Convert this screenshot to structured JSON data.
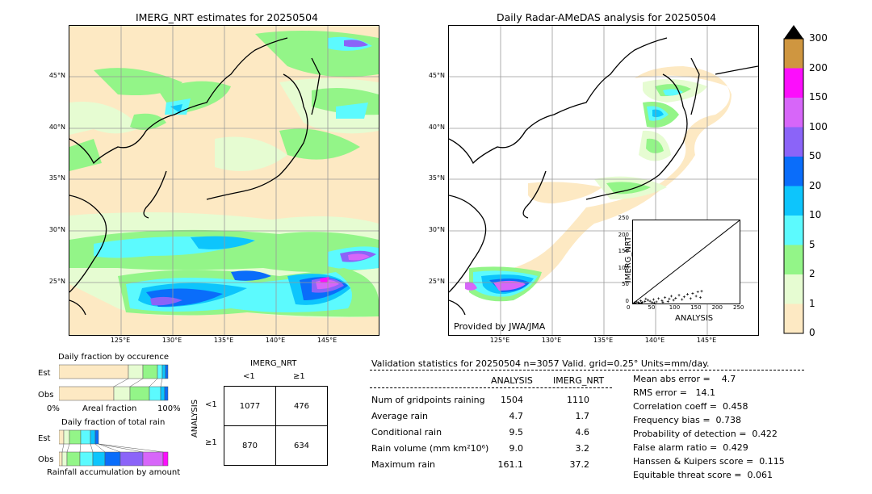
{
  "left_map": {
    "title": "IMERG_NRT estimates for 20250504",
    "lat_labels": [
      "45°N",
      "40°N",
      "35°N",
      "30°N",
      "25°N"
    ],
    "lon_labels": [
      "125°E",
      "130°E",
      "135°E",
      "140°E",
      "145°E"
    ]
  },
  "right_map": {
    "title": "Daily Radar-AMeDAS analysis for 20250504",
    "lat_labels": [
      "45°N",
      "40°N",
      "35°N",
      "30°N",
      "25°N"
    ],
    "lon_labels": [
      "125°E",
      "130°E",
      "135°E",
      "140°E",
      "145°E"
    ],
    "credit": "Provided by JWA/JMA"
  },
  "scatter_inset": {
    "xlabel": "ANALYSIS",
    "ylabel": "IMERG_NRT",
    "ticks": [
      "0",
      "25",
      "50",
      "75",
      "100",
      "125",
      "150",
      "175",
      "200",
      "225",
      "250"
    ],
    "xlim": [
      0,
      250
    ],
    "ylim": [
      0,
      250
    ],
    "points": [
      [
        3,
        2
      ],
      [
        8,
        5
      ],
      [
        12,
        3
      ],
      [
        18,
        8
      ],
      [
        22,
        4
      ],
      [
        28,
        6
      ],
      [
        35,
        10
      ],
      [
        40,
        7
      ],
      [
        48,
        12
      ],
      [
        55,
        5
      ],
      [
        60,
        15
      ],
      [
        68,
        9
      ],
      [
        75,
        18
      ],
      [
        82,
        6
      ],
      [
        90,
        22
      ],
      [
        95,
        10
      ],
      [
        100,
        16
      ],
      [
        108,
        25
      ],
      [
        115,
        12
      ],
      [
        120,
        20
      ],
      [
        128,
        28
      ],
      [
        135,
        15
      ],
      [
        140,
        30
      ],
      [
        148,
        22
      ],
      [
        152,
        35
      ],
      [
        158,
        18
      ],
      [
        161,
        37
      ],
      [
        20,
        2
      ],
      [
        45,
        3
      ],
      [
        70,
        4
      ],
      [
        30,
        14
      ],
      [
        85,
        14
      ],
      [
        5,
        1
      ],
      [
        15,
        1
      ],
      [
        50,
        2
      ]
    ]
  },
  "colorbar": {
    "labels": [
      "0",
      "1",
      "2",
      "5",
      "10",
      "20",
      "50",
      "100",
      "150",
      "200",
      "300"
    ],
    "colors": [
      "#fde9c3",
      "#e6fcd2",
      "#93f588",
      "#5cfafe",
      "#0dc5fc",
      "#0a6dfa",
      "#8b64f8",
      "#d766f9",
      "#fc0efc",
      "#cf9640"
    ]
  },
  "occurrence": {
    "title": "Daily fraction by occurence",
    "rows": [
      "Est",
      "Obs"
    ],
    "axis_left": "0%",
    "axis_mid": "Areal fraction",
    "axis_right": "100%"
  },
  "total_rain": {
    "title": "Daily fraction of total rain",
    "rows": [
      "Est",
      "Obs"
    ],
    "axis_label": "Rainfall accumulation by amount"
  },
  "contingency": {
    "col_header": "IMERG_NRT",
    "row_header": "ANALYSIS",
    "col_labels": [
      "<1",
      "≥1"
    ],
    "row_labels": [
      "<1",
      "≥1"
    ],
    "cells": [
      [
        "1077",
        "476"
      ],
      [
        "870",
        "634"
      ]
    ]
  },
  "validation": {
    "header": "Validation statistics for 20250504  n=3057 Valid. grid=0.25° Units=mm/day.",
    "col_analysis": "ANALYSIS",
    "col_imerg": "IMERG_NRT",
    "rows": [
      {
        "label": "Num of gridpoints raining",
        "analysis": "1504",
        "imerg": "1110"
      },
      {
        "label": "Average rain",
        "analysis": "4.7",
        "imerg": "1.7"
      },
      {
        "label": "Conditional rain",
        "analysis": "9.5",
        "imerg": "4.6"
      },
      {
        "label": "Rain volume (mm km²10⁶)",
        "analysis": "9.0",
        "imerg": "3.2"
      },
      {
        "label": "Maximum rain",
        "analysis": "161.1",
        "imerg": "37.2"
      }
    ],
    "scores": [
      "Mean abs error =    4.7",
      "RMS error =   14.1",
      "Correlation coeff =  0.458",
      "Frequency bias =  0.738",
      "Probability of detection =  0.422",
      "False alarm ratio =  0.429",
      "Hanssen & Kuipers score =  0.115",
      "Equitable threat score =  0.061"
    ]
  }
}
